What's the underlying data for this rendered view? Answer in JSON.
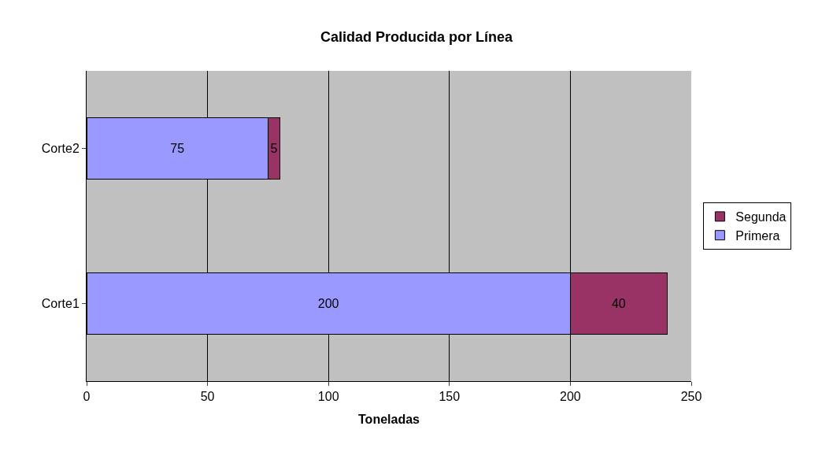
{
  "chart_data": {
    "type": "bar",
    "orientation": "horizontal",
    "stacked": true,
    "title": "Calidad Producida por Línea",
    "xlabel": "Toneladas",
    "categories": [
      "Corte2",
      "Corte1"
    ],
    "series": [
      {
        "name": "Primera",
        "color": "#9999ff",
        "values": [
          75,
          200
        ]
      },
      {
        "name": "Segunda",
        "color": "#993366",
        "values": [
          5,
          40
        ]
      }
    ],
    "xlim": [
      0,
      250
    ],
    "xticks": [
      0,
      50,
      100,
      150,
      200,
      250
    ],
    "grid": "x",
    "legend": "right",
    "data_labels": true
  }
}
